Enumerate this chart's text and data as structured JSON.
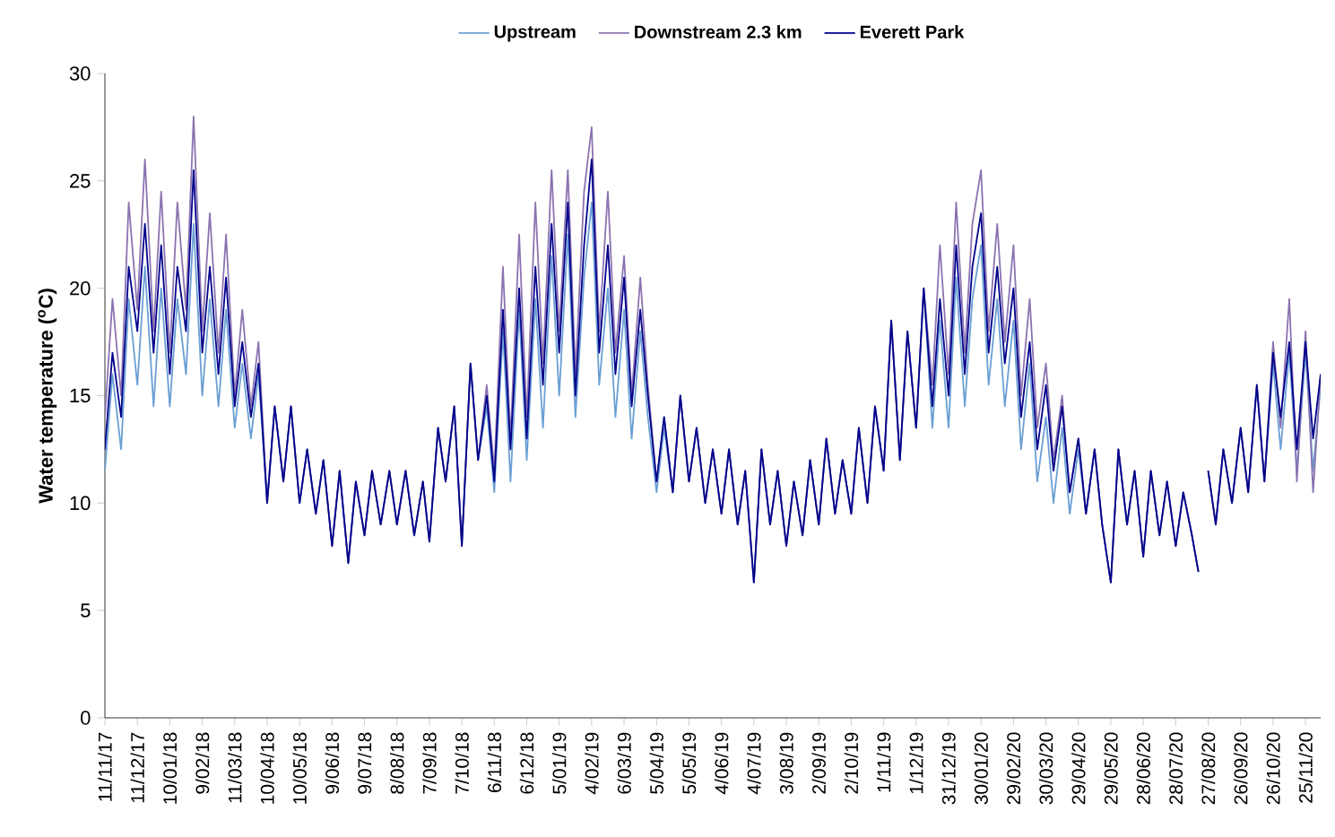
{
  "chart_data": {
    "type": "line",
    "ylabel": "Water temperature ($^{o}$C)",
    "legend": "top",
    "x": [
      "2017-11-11",
      "2017-11-18",
      "2017-11-26",
      "2017-12-03",
      "2017-12-11",
      "2017-12-18",
      "2017-12-26",
      "2018-01-02",
      "2018-01-10",
      "2018-01-17",
      "2018-01-25",
      "2018-02-01",
      "2018-02-09",
      "2018-02-16",
      "2018-02-24",
      "2018-03-03",
      "2018-03-11",
      "2018-03-18",
      "2018-03-26",
      "2018-04-02",
      "2018-04-10",
      "2018-04-17",
      "2018-04-25",
      "2018-05-02",
      "2018-05-10",
      "2018-05-17",
      "2018-05-25",
      "2018-06-01",
      "2018-06-09",
      "2018-06-16",
      "2018-06-24",
      "2018-07-01",
      "2018-07-09",
      "2018-07-16",
      "2018-07-24",
      "2018-08-01",
      "2018-08-08",
      "2018-08-16",
      "2018-08-24",
      "2018-09-01",
      "2018-09-07",
      "2018-09-15",
      "2018-09-22",
      "2018-09-30",
      "2018-10-07",
      "2018-10-15",
      "2018-10-22",
      "2018-10-30",
      "2018-11-06",
      "2018-11-14",
      "2018-11-21",
      "2018-11-29",
      "2018-12-06",
      "2018-12-14",
      "2018-12-21",
      "2018-12-29",
      "2019-01-05",
      "2019-01-13",
      "2019-01-20",
      "2019-01-28",
      "2019-02-04",
      "2019-02-11",
      "2019-02-19",
      "2019-02-26",
      "2019-03-06",
      "2019-03-13",
      "2019-03-21",
      "2019-03-28",
      "2019-04-05",
      "2019-04-12",
      "2019-04-20",
      "2019-04-27",
      "2019-05-05",
      "2019-05-12",
      "2019-05-20",
      "2019-05-27",
      "2019-06-04",
      "2019-06-11",
      "2019-06-19",
      "2019-06-26",
      "2019-07-04",
      "2019-07-11",
      "2019-07-19",
      "2019-07-26",
      "2019-08-03",
      "2019-08-10",
      "2019-08-18",
      "2019-08-25",
      "2019-09-02",
      "2019-09-09",
      "2019-09-17",
      "2019-09-24",
      "2019-10-02",
      "2019-10-09",
      "2019-10-17",
      "2019-10-24",
      "2019-11-01",
      "2019-11-08",
      "2019-11-16",
      "2019-11-23",
      "2019-12-01",
      "2019-12-08",
      "2019-12-16",
      "2019-12-23",
      "2019-12-31",
      "2020-01-07",
      "2020-01-15",
      "2020-01-22",
      "2020-01-30",
      "2020-02-06",
      "2020-02-14",
      "2020-02-21",
      "2020-02-29",
      "2020-03-07",
      "2020-03-15",
      "2020-03-22",
      "2020-03-30",
      "2020-04-06",
      "2020-04-14",
      "2020-04-21",
      "2020-04-29",
      "2020-05-06",
      "2020-05-14",
      "2020-05-21",
      "2020-05-29",
      "2020-06-05",
      "2020-06-13",
      "2020-06-20",
      "2020-06-28",
      "2020-07-05",
      "2020-07-13",
      "2020-07-20",
      "2020-07-28",
      "2020-08-04",
      "2020-08-12",
      "2020-08-18",
      "2020-08-22",
      "2020-08-27",
      "2020-09-03",
      "2020-09-10",
      "2020-09-18",
      "2020-09-26",
      "2020-10-03",
      "2020-10-11",
      "2020-10-18",
      "2020-10-26",
      "2020-11-02",
      "2020-11-10",
      "2020-11-17",
      "2020-11-25",
      "2020-12-02",
      "2020-12-09"
    ],
    "series": [
      {
        "name": "Upstream",
        "color": "#6a9fd4",
        "values": [
          11.5,
          16,
          12.5,
          19.5,
          15.5,
          21,
          14.5,
          20,
          14.5,
          19.5,
          16,
          23,
          15,
          19.5,
          14.5,
          19,
          13.5,
          16.5,
          13,
          16,
          10,
          14.5,
          11,
          14.5,
          10,
          12.5,
          9.5,
          12,
          8,
          11.5,
          7.2,
          11,
          8.5,
          11.5,
          9,
          11.5,
          9,
          11.5,
          8.5,
          11,
          8.2,
          13.5,
          11,
          14.5,
          8,
          16.5,
          12,
          14.5,
          10.5,
          18,
          11,
          19,
          12,
          19.5,
          13.5,
          21.5,
          15,
          22.5,
          14,
          20.5,
          24,
          15.5,
          20,
          14,
          19,
          13,
          18,
          14,
          10.5,
          13.5,
          10.5,
          15,
          11,
          13.5,
          10,
          12.5,
          9.5,
          12.5,
          9,
          11.5,
          6.3,
          12.5,
          9,
          11.5,
          8,
          11,
          8.5,
          12,
          9,
          13,
          9.5,
          12,
          9.5,
          13.5,
          10,
          14.5,
          11.5,
          18.5,
          12,
          18,
          13.5,
          20,
          13.5,
          18.5,
          13.5,
          20.5,
          14.5,
          19.5,
          22,
          15.5,
          19.5,
          14.5,
          18.5,
          12.5,
          16.5,
          11,
          14,
          10,
          13.5,
          9.5,
          12.5,
          9.5,
          12.5,
          9,
          6.3,
          12.5,
          9,
          11.5,
          7.5,
          11.5,
          8.5,
          11,
          8,
          10.5,
          8.5,
          6.8,
          null,
          11.5,
          9,
          12.5,
          10,
          13.5,
          10.5,
          15.5,
          11,
          16.5,
          12.5,
          17,
          11.5,
          17,
          11.5,
          15.5
        ]
      },
      {
        "name": "Downstream 2.3 km",
        "color": "#8b73b0",
        "values": [
          14,
          19.5,
          15,
          24,
          19,
          26,
          18,
          24.5,
          17,
          24,
          19,
          28,
          18,
          23.5,
          17,
          22.5,
          15,
          19,
          14.5,
          17.5,
          10,
          14.5,
          11,
          14.5,
          10,
          12.5,
          9.5,
          12,
          8,
          11.5,
          7.2,
          11,
          8.5,
          11.5,
          9,
          11.5,
          9,
          11.5,
          8.5,
          11,
          8.2,
          13.5,
          11,
          14.5,
          8,
          16.5,
          12,
          15.5,
          11.5,
          21,
          13,
          22.5,
          14,
          24,
          16.5,
          25.5,
          18,
          25.5,
          16,
          24.5,
          27.5,
          18,
          24.5,
          17,
          21.5,
          15,
          20.5,
          15.5,
          11,
          14,
          10.5,
          15,
          11,
          13.5,
          10,
          12.5,
          9.5,
          12.5,
          9,
          11.5,
          6.3,
          12.5,
          9,
          11.5,
          8,
          11,
          8.5,
          12,
          9,
          13,
          9.5,
          12,
          9.5,
          13.5,
          10,
          14.5,
          11.5,
          18.5,
          12,
          18,
          13.5,
          20,
          15.5,
          22,
          16,
          24,
          17,
          23,
          25.5,
          18,
          23,
          17.5,
          22,
          15,
          19.5,
          13.5,
          16.5,
          12,
          15,
          10.5,
          13,
          9.5,
          12.5,
          9,
          6.3,
          12.5,
          9,
          11.5,
          7.5,
          11.5,
          8.5,
          11,
          8,
          10.5,
          8.5,
          6.8,
          null,
          11.5,
          9,
          12.5,
          10,
          13.5,
          10.5,
          15.5,
          11,
          17.5,
          13.5,
          19.5,
          11,
          18,
          10.5,
          16
        ]
      },
      {
        "name": "Everett Park",
        "color": "#00008b",
        "values": [
          12.5,
          17,
          14,
          21,
          18,
          23,
          17,
          22,
          16,
          21,
          18,
          25.5,
          17,
          21,
          16,
          20.5,
          14.5,
          17.5,
          14,
          16.5,
          10,
          14.5,
          11,
          14.5,
          10,
          12.5,
          9.5,
          12,
          8,
          11.5,
          7.2,
          11,
          8.5,
          11.5,
          9,
          11.5,
          9,
          11.5,
          8.5,
          11,
          8.2,
          13.5,
          11,
          14.5,
          8,
          16.5,
          12,
          15,
          11,
          19,
          12.5,
          20,
          13,
          21,
          15.5,
          23,
          17,
          24,
          15,
          22,
          26,
          17,
          22,
          16,
          20.5,
          14.5,
          19,
          15,
          11,
          14,
          10.5,
          15,
          11,
          13.5,
          10,
          12.5,
          9.5,
          12.5,
          9,
          11.5,
          6.3,
          12.5,
          9,
          11.5,
          8,
          11,
          8.5,
          12,
          9,
          13,
          9.5,
          12,
          9.5,
          13.5,
          10,
          14.5,
          11.5,
          18.5,
          12,
          18,
          13.5,
          20,
          14.5,
          19.5,
          15,
          22,
          16,
          21,
          23.5,
          17,
          21,
          16.5,
          20,
          14,
          17.5,
          12.5,
          15.5,
          11.5,
          14.5,
          10.5,
          13,
          9.5,
          12.5,
          9,
          6.3,
          12.5,
          9,
          11.5,
          7.5,
          11.5,
          8.5,
          11,
          8,
          10.5,
          8.5,
          6.8,
          null,
          11.5,
          9,
          12.5,
          10,
          13.5,
          10.5,
          15.5,
          11,
          17,
          14,
          17.5,
          12.5,
          17.5,
          13,
          16
        ]
      }
    ],
    "xlim": [
      "2017-11-11",
      "2020-12-09"
    ],
    "xticks": [
      {
        "value": "2017-11-11",
        "label": "11/11/17"
      },
      {
        "value": "2017-12-11",
        "label": "11/12/17"
      },
      {
        "value": "2018-01-10",
        "label": "10/01/18"
      },
      {
        "value": "2018-02-09",
        "label": "9/02/18"
      },
      {
        "value": "2018-03-11",
        "label": "11/03/18"
      },
      {
        "value": "2018-04-10",
        "label": "10/04/18"
      },
      {
        "value": "2018-05-10",
        "label": "10/05/18"
      },
      {
        "value": "2018-06-09",
        "label": "9/06/18"
      },
      {
        "value": "2018-07-09",
        "label": "9/07/18"
      },
      {
        "value": "2018-08-08",
        "label": "8/08/18"
      },
      {
        "value": "2018-09-07",
        "label": "7/09/18"
      },
      {
        "value": "2018-10-07",
        "label": "7/10/18"
      },
      {
        "value": "2018-11-06",
        "label": "6/11/18"
      },
      {
        "value": "2018-12-06",
        "label": "6/12/18"
      },
      {
        "value": "2019-01-05",
        "label": "5/01/19"
      },
      {
        "value": "2019-02-04",
        "label": "4/02/19"
      },
      {
        "value": "2019-03-06",
        "label": "6/03/19"
      },
      {
        "value": "2019-04-05",
        "label": "5/04/19"
      },
      {
        "value": "2019-05-05",
        "label": "5/05/19"
      },
      {
        "value": "2019-06-04",
        "label": "4/06/19"
      },
      {
        "value": "2019-07-04",
        "label": "4/07/19"
      },
      {
        "value": "2019-08-03",
        "label": "3/08/19"
      },
      {
        "value": "2019-09-02",
        "label": "2/09/19"
      },
      {
        "value": "2019-10-02",
        "label": "2/10/19"
      },
      {
        "value": "2019-11-01",
        "label": "1/11/19"
      },
      {
        "value": "2019-12-01",
        "label": "1/12/19"
      },
      {
        "value": "2019-12-31",
        "label": "31/12/19"
      },
      {
        "value": "2020-01-30",
        "label": "30/01/20"
      },
      {
        "value": "2020-02-29",
        "label": "29/02/20"
      },
      {
        "value": "2020-03-30",
        "label": "30/03/20"
      },
      {
        "value": "2020-04-29",
        "label": "29/04/20"
      },
      {
        "value": "2020-05-29",
        "label": "29/05/20"
      },
      {
        "value": "2020-06-28",
        "label": "28/06/20"
      },
      {
        "value": "2020-07-28",
        "label": "28/07/20"
      },
      {
        "value": "2020-08-27",
        "label": "27/08/20"
      },
      {
        "value": "2020-09-26",
        "label": "26/09/20"
      },
      {
        "value": "2020-10-26",
        "label": "26/10/20"
      },
      {
        "value": "2020-11-25",
        "label": "25/11/20"
      }
    ],
    "ylim": [
      0,
      30
    ],
    "yticks": [
      0,
      5,
      10,
      15,
      20,
      25,
      30
    ]
  }
}
